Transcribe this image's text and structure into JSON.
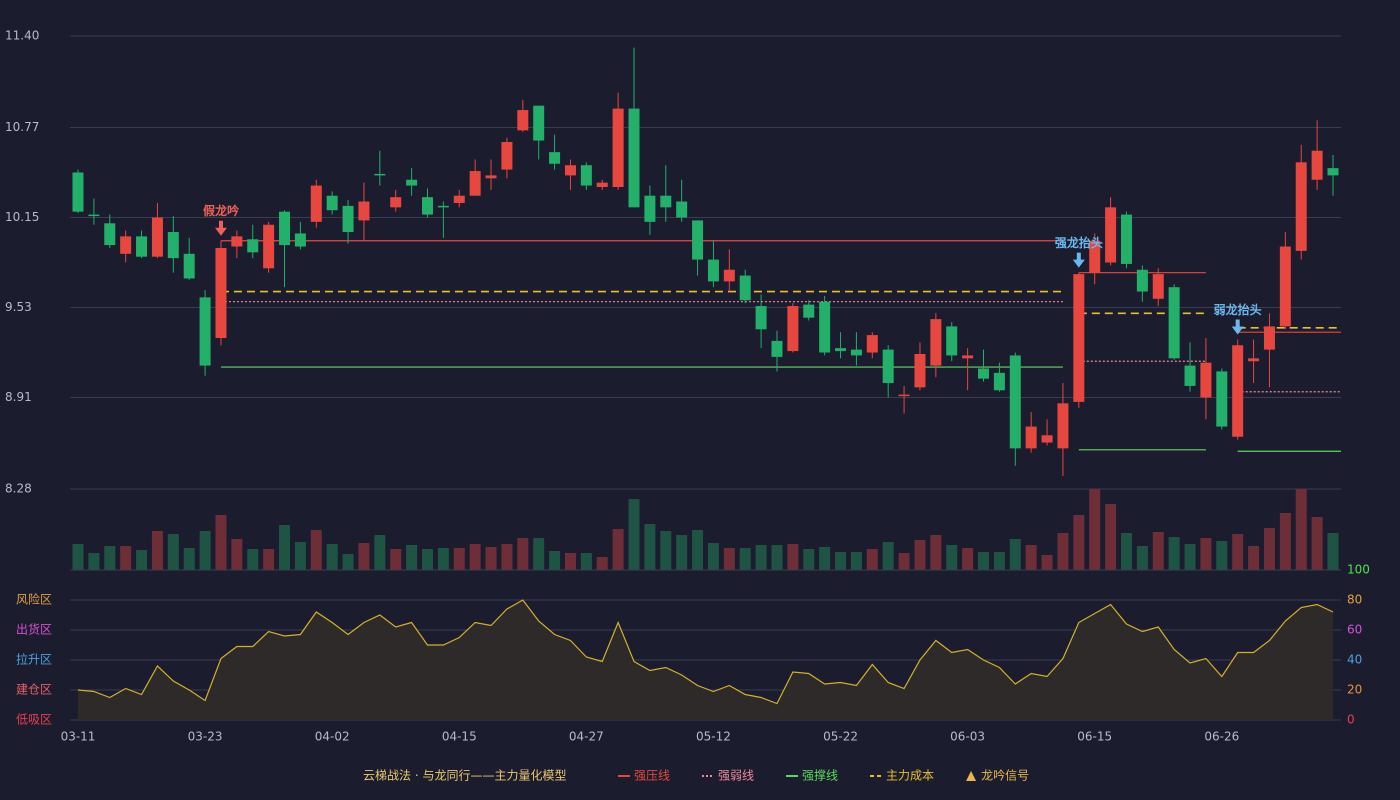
{
  "chart_data": [
    {
      "type": "candlestick",
      "categories": [
        "03-11",
        null,
        null,
        null,
        null,
        null,
        null,
        null,
        "03-23",
        null,
        null,
        null,
        null,
        null,
        null,
        null,
        "04-02",
        null,
        null,
        null,
        null,
        null,
        null,
        null,
        "04-15",
        null,
        null,
        null,
        null,
        null,
        null,
        null,
        "04-27",
        null,
        null,
        null,
        null,
        null,
        null,
        null,
        "05-12",
        null,
        null,
        null,
        null,
        null,
        null,
        null,
        "05-22",
        null,
        null,
        null,
        null,
        null,
        null,
        null,
        "06-03",
        null,
        null,
        null,
        null,
        null,
        null,
        null,
        "06-15",
        null,
        null,
        null,
        null,
        null,
        null,
        null,
        "06-26",
        null,
        null,
        null,
        null,
        null,
        null,
        null
      ],
      "open": [
        10.46,
        10.17,
        10.11,
        9.9,
        10.02,
        9.88,
        10.05,
        9.9,
        9.6,
        9.32,
        9.95,
        10.0,
        9.8,
        10.19,
        10.04,
        10.12,
        10.3,
        10.23,
        10.13,
        10.45,
        10.22,
        10.41,
        10.29,
        10.23,
        10.25,
        10.3,
        10.42,
        10.48,
        10.75,
        10.92,
        10.6,
        10.44,
        10.51,
        10.36,
        10.36,
        10.9,
        10.3,
        10.3,
        10.26,
        10.13,
        9.86,
        9.71,
        9.75,
        9.54,
        9.3,
        9.23,
        9.55,
        9.57,
        9.25,
        9.24,
        9.22,
        9.24,
        8.92,
        8.98,
        9.13,
        9.4,
        9.18,
        9.11,
        9.08,
        9.2,
        8.56,
        8.6,
        8.56,
        8.88,
        9.77,
        9.84,
        10.17,
        9.79,
        9.59,
        9.67,
        9.13,
        8.91,
        9.09,
        8.64,
        9.16,
        9.24,
        9.4,
        9.92,
        10.41,
        10.49
      ],
      "high": [
        10.48,
        10.28,
        10.17,
        10.06,
        10.06,
        10.25,
        10.16,
        10.01,
        9.65,
        9.99,
        10.06,
        10.1,
        10.12,
        10.2,
        10.12,
        10.41,
        10.33,
        10.27,
        10.39,
        10.61,
        10.34,
        10.49,
        10.35,
        10.26,
        10.34,
        10.55,
        10.55,
        10.7,
        10.96,
        10.92,
        10.72,
        10.55,
        10.53,
        10.41,
        11.01,
        11.32,
        10.37,
        10.51,
        10.41,
        10.13,
        9.99,
        9.93,
        9.79,
        9.62,
        9.37,
        9.56,
        9.58,
        9.61,
        9.36,
        9.36,
        9.36,
        9.27,
        8.99,
        9.29,
        9.49,
        9.43,
        9.25,
        9.24,
        9.15,
        9.22,
        8.81,
        8.76,
        9.01,
        9.77,
        10.04,
        10.29,
        10.19,
        9.82,
        9.8,
        9.69,
        9.29,
        9.32,
        9.11,
        9.31,
        9.31,
        9.49,
        10.05,
        10.65,
        10.82,
        10.58
      ],
      "low": [
        10.18,
        10.1,
        9.94,
        9.84,
        9.87,
        9.87,
        9.77,
        9.72,
        9.06,
        9.27,
        9.87,
        9.87,
        9.77,
        9.67,
        9.93,
        10.08,
        10.17,
        9.97,
        9.99,
        10.37,
        10.19,
        10.3,
        10.15,
        10.01,
        10.22,
        10.3,
        10.34,
        10.42,
        10.74,
        10.55,
        10.48,
        10.34,
        10.34,
        10.34,
        10.34,
        10.22,
        10.03,
        10.12,
        10.12,
        9.75,
        9.67,
        9.64,
        9.56,
        9.25,
        9.09,
        9.22,
        9.44,
        9.2,
        9.18,
        9.13,
        9.18,
        8.91,
        8.8,
        8.96,
        9.05,
        9.16,
        8.96,
        9.02,
        8.95,
        8.44,
        8.53,
        8.58,
        8.37,
        8.84,
        9.69,
        9.82,
        9.8,
        9.57,
        9.54,
        9.17,
        8.95,
        8.76,
        8.69,
        8.62,
        9.01,
        8.98,
        9.38,
        9.86,
        10.34,
        10.3
      ],
      "close": [
        10.19,
        10.16,
        9.96,
        10.02,
        9.88,
        10.15,
        9.87,
        9.73,
        9.13,
        9.94,
        10.02,
        9.91,
        10.1,
        9.96,
        9.95,
        10.37,
        10.2,
        10.05,
        10.26,
        10.44,
        10.29,
        10.37,
        10.17,
        10.22,
        10.3,
        10.47,
        10.44,
        10.67,
        10.89,
        10.68,
        10.52,
        10.51,
        10.37,
        10.39,
        10.9,
        10.22,
        10.12,
        10.22,
        10.15,
        9.86,
        9.71,
        9.79,
        9.58,
        9.38,
        9.19,
        9.54,
        9.46,
        9.22,
        9.23,
        9.2,
        9.34,
        9.01,
        8.93,
        9.21,
        9.45,
        9.2,
        9.2,
        9.04,
        8.96,
        8.56,
        8.71,
        8.65,
        8.87,
        9.76,
        9.99,
        10.22,
        9.83,
        9.64,
        9.76,
        9.18,
        8.99,
        9.15,
        8.71,
        9.27,
        9.18,
        9.4,
        9.95,
        10.53,
        10.61,
        10.44
      ],
      "ylim": [
        8.28,
        11.4
      ],
      "yticks": [
        8.28,
        8.91,
        9.53,
        10.15,
        10.77,
        {
          "value": 11.4,
          "label": "11.40"
        }
      ],
      "grid": true,
      "up_color": "#e8473f",
      "down_color": "#22b06a",
      "legend_title": "云梯战法 · 与龙同行——主力量化模型",
      "levels": [
        {
          "name": "强压线",
          "color": "#e8473f",
          "style": "solid",
          "segments": [
            {
              "start": 9,
              "end": 62,
              "value": 9.99
            },
            {
              "start": 63,
              "end": 71,
              "value": 9.77
            },
            {
              "start": 73,
              "end": 79,
              "value": 9.36
            }
          ]
        },
        {
          "name": "强弱线",
          "color": "#f08a9a",
          "style": "dotted",
          "segments": [
            {
              "start": 9,
              "end": 62,
              "value": 9.57
            },
            {
              "start": 63,
              "end": 71,
              "value": 9.16
            },
            {
              "start": 73,
              "end": 79,
              "value": 8.95
            }
          ]
        },
        {
          "name": "强撑线",
          "color": "#5fd85f",
          "style": "solid",
          "segments": [
            {
              "start": 9,
              "end": 62,
              "value": 9.12
            },
            {
              "start": 63,
              "end": 71,
              "value": 8.55
            },
            {
              "start": 73,
              "end": 79,
              "value": 8.54
            }
          ]
        },
        {
          "name": "主力成本",
          "color": "#e8c12a",
          "style": "dashed",
          "segments": [
            {
              "start": 9,
              "end": 62,
              "value": 9.64
            },
            {
              "start": 63,
              "end": 71,
              "value": 9.49
            },
            {
              "start": 73,
              "end": 79,
              "value": 9.39
            }
          ]
        }
      ],
      "signal_name": "龙吟信号",
      "signal_color": "#e8b84a",
      "signals": [
        {
          "label": "假龙吟",
          "index": 9,
          "color": "#f0605a"
        },
        {
          "label": "强龙抬头",
          "index": 63,
          "color": "#6ab8f0"
        },
        {
          "label": "弱龙抬头",
          "index": 73,
          "color": "#6ab8f0"
        }
      ]
    },
    {
      "type": "bar",
      "values": [
        26,
        17,
        24,
        24,
        20,
        39,
        36,
        22,
        39,
        55,
        31,
        21,
        21,
        45,
        28,
        40,
        26,
        16,
        27,
        35,
        21,
        25,
        21,
        22,
        22,
        26,
        23,
        26,
        32,
        32,
        19,
        17,
        17,
        13,
        41,
        71,
        46,
        39,
        35,
        40,
        27,
        22,
        22,
        25,
        25,
        26,
        21,
        23,
        18,
        18,
        21,
        28,
        17,
        30,
        35,
        25,
        22,
        18,
        18,
        31,
        25,
        15,
        37,
        55,
        81,
        66,
        37,
        24,
        38,
        33,
        26,
        32,
        29,
        36,
        24,
        42,
        57,
        81,
        53,
        37
      ],
      "ylim": [
        0,
        81
      ]
    },
    {
      "type": "line",
      "values": [
        20,
        19,
        15,
        21,
        17,
        36,
        26,
        20,
        13,
        41,
        49,
        49,
        59,
        56,
        57,
        72,
        65,
        57,
        65,
        70,
        62,
        65,
        50,
        50,
        55,
        65,
        63,
        74,
        80,
        66,
        57,
        53,
        42,
        39,
        65,
        39,
        33,
        35,
        30,
        23,
        19,
        23,
        17,
        15,
        11,
        32,
        31,
        24,
        25,
        23,
        37,
        25,
        21,
        40,
        53,
        45,
        47,
        40,
        35,
        24,
        31,
        29,
        41,
        65,
        71,
        77,
        64,
        59,
        62,
        47,
        38,
        41,
        29,
        45,
        45,
        53,
        66,
        75,
        77,
        72
      ],
      "color": "#d4b02a",
      "ylim": [
        0,
        100
      ],
      "yticks": [
        0,
        20,
        40,
        60,
        80,
        100
      ],
      "ytick_colors": [
        "#e84050",
        "#e89040",
        "#4f9fe0",
        "#d94fd9",
        "#e0a040",
        "#4fe04f"
      ],
      "zones": [
        {
          "label": "风险区",
          "value": 80,
          "color": "#e0a040"
        },
        {
          "label": "出货区",
          "value": 60,
          "color": "#d94fd9"
        },
        {
          "label": "拉升区",
          "value": 40,
          "color": "#4f9fe0"
        },
        {
          "label": "建仓区",
          "value": 20,
          "color": "#e8606a"
        },
        {
          "label": "低吸区",
          "value": 0,
          "color": "#e84050"
        }
      ]
    }
  ]
}
